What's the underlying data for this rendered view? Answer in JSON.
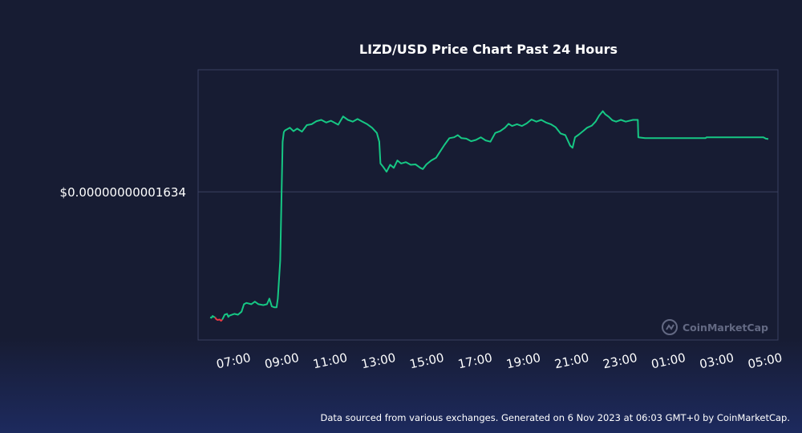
{
  "chart_data": {
    "type": "line",
    "title": "LIZD/USD Price Chart Past 24 Hours",
    "xlabel": "",
    "ylabel": "",
    "x_ticks": [
      "07:00",
      "09:00",
      "11:00",
      "13:00",
      "15:00",
      "17:00",
      "19:00",
      "21:00",
      "23:00",
      "01:00",
      "03:00",
      "05:00"
    ],
    "y_ticks": [
      "$0.00000000001634"
    ],
    "y_tick_value": 1.634e-11,
    "x_range_hours": [
      5.5,
      29.5
    ],
    "y_range": [
      1.6e-11,
      1.662e-11
    ],
    "series": [
      {
        "color_up": "#16c784",
        "color_down": "#ea3943",
        "points": [
          [
            6.0,
            1.6052e-11
          ],
          [
            6.05,
            1.6051e-11
          ],
          [
            6.1,
            1.6055e-11
          ],
          [
            6.15,
            1.6053e-11
          ],
          [
            6.2,
            1.6052e-11
          ],
          [
            6.25,
            1.6048e-11
          ],
          [
            6.3,
            1.6046e-11
          ],
          [
            6.4,
            1.6047e-11
          ],
          [
            6.45,
            1.6044e-11
          ],
          [
            6.5,
            1.6047e-11
          ],
          [
            6.55,
            1.6052e-11
          ],
          [
            6.6,
            1.6058e-11
          ],
          [
            6.7,
            1.606e-11
          ],
          [
            6.75,
            1.6053e-11
          ],
          [
            6.8,
            1.6056e-11
          ],
          [
            7.0,
            1.606e-11
          ],
          [
            7.15,
            1.6058e-11
          ],
          [
            7.3,
            1.6065e-11
          ],
          [
            7.4,
            1.6082e-11
          ],
          [
            7.5,
            1.6085e-11
          ],
          [
            7.7,
            1.6082e-11
          ],
          [
            7.85,
            1.6088e-11
          ],
          [
            8.0,
            1.6082e-11
          ],
          [
            8.2,
            1.608e-11
          ],
          [
            8.35,
            1.6082e-11
          ],
          [
            8.45,
            1.6095e-11
          ],
          [
            8.55,
            1.6077e-11
          ],
          [
            8.65,
            1.6075e-11
          ],
          [
            8.75,
            1.6075e-11
          ],
          [
            8.8,
            1.6095e-11
          ],
          [
            8.9,
            1.6182e-11
          ],
          [
            9.0,
            1.6455e-11
          ],
          [
            9.05,
            1.6477e-11
          ],
          [
            9.1,
            1.6481e-11
          ],
          [
            9.3,
            1.6487e-11
          ],
          [
            9.45,
            1.6479e-11
          ],
          [
            9.6,
            1.6485e-11
          ],
          [
            9.8,
            1.6478e-11
          ],
          [
            10.0,
            1.6493e-11
          ],
          [
            10.2,
            1.6495e-11
          ],
          [
            10.4,
            1.6502e-11
          ],
          [
            10.6,
            1.6505e-11
          ],
          [
            10.8,
            1.6499e-11
          ],
          [
            11.0,
            1.6503e-11
          ],
          [
            11.3,
            1.6494e-11
          ],
          [
            11.5,
            1.6513e-11
          ],
          [
            11.7,
            1.6505e-11
          ],
          [
            11.9,
            1.6501e-11
          ],
          [
            12.1,
            1.6507e-11
          ],
          [
            12.3,
            1.6501e-11
          ],
          [
            12.5,
            1.6495e-11
          ],
          [
            12.7,
            1.6487e-11
          ],
          [
            12.9,
            1.6475e-11
          ],
          [
            13.0,
            1.6455e-11
          ],
          [
            13.05,
            1.6405e-11
          ],
          [
            13.15,
            1.6398e-11
          ],
          [
            13.3,
            1.6386e-11
          ],
          [
            13.45,
            1.6402e-11
          ],
          [
            13.6,
            1.6395e-11
          ],
          [
            13.75,
            1.6412e-11
          ],
          [
            13.9,
            1.6405e-11
          ],
          [
            14.1,
            1.6408e-11
          ],
          [
            14.3,
            1.6402e-11
          ],
          [
            14.5,
            1.6403e-11
          ],
          [
            14.7,
            1.6395e-11
          ],
          [
            14.8,
            1.6392e-11
          ],
          [
            14.95,
            1.6403e-11
          ],
          [
            15.15,
            1.6412e-11
          ],
          [
            15.35,
            1.6418e-11
          ],
          [
            15.5,
            1.6431e-11
          ],
          [
            15.7,
            1.6448e-11
          ],
          [
            15.9,
            1.6463e-11
          ],
          [
            16.1,
            1.6465e-11
          ],
          [
            16.25,
            1.647e-11
          ],
          [
            16.4,
            1.6463e-11
          ],
          [
            16.6,
            1.6462e-11
          ],
          [
            16.8,
            1.6456e-11
          ],
          [
            17.0,
            1.6459e-11
          ],
          [
            17.2,
            1.6465e-11
          ],
          [
            17.4,
            1.6458e-11
          ],
          [
            17.6,
            1.6455e-11
          ],
          [
            17.8,
            1.6475e-11
          ],
          [
            18.0,
            1.6479e-11
          ],
          [
            18.2,
            1.6487e-11
          ],
          [
            18.35,
            1.6496e-11
          ],
          [
            18.5,
            1.6491e-11
          ],
          [
            18.7,
            1.6495e-11
          ],
          [
            18.9,
            1.6491e-11
          ],
          [
            19.1,
            1.6497e-11
          ],
          [
            19.3,
            1.6506e-11
          ],
          [
            19.5,
            1.6501e-11
          ],
          [
            19.7,
            1.6505e-11
          ],
          [
            19.9,
            1.6499e-11
          ],
          [
            20.1,
            1.6495e-11
          ],
          [
            20.3,
            1.6488e-11
          ],
          [
            20.5,
            1.6474e-11
          ],
          [
            20.7,
            1.647e-11
          ],
          [
            20.9,
            1.6446e-11
          ],
          [
            21.0,
            1.6441e-11
          ],
          [
            21.1,
            1.6465e-11
          ],
          [
            21.25,
            1.6471e-11
          ],
          [
            21.45,
            1.648e-11
          ],
          [
            21.6,
            1.6487e-11
          ],
          [
            21.8,
            1.6492e-11
          ],
          [
            21.95,
            1.6501e-11
          ],
          [
            22.1,
            1.6515e-11
          ],
          [
            22.25,
            1.6525e-11
          ],
          [
            22.35,
            1.6518e-11
          ],
          [
            22.5,
            1.6512e-11
          ],
          [
            22.65,
            1.6504e-11
          ],
          [
            22.8,
            1.6501e-11
          ],
          [
            23.0,
            1.6505e-11
          ],
          [
            23.2,
            1.6501e-11
          ],
          [
            23.5,
            1.6505e-11
          ],
          [
            23.7,
            1.6505e-11
          ],
          [
            23.72,
            1.6465e-11
          ],
          [
            24.0,
            1.6463e-11
          ],
          [
            25.0,
            1.6463e-11
          ],
          [
            26.0,
            1.6463e-11
          ],
          [
            26.5,
            1.6463e-11
          ],
          [
            26.55,
            1.6465e-11
          ],
          [
            27.5,
            1.6465e-11
          ],
          [
            28.5,
            1.6465e-11
          ],
          [
            28.9,
            1.6465e-11
          ],
          [
            29.0,
            1.6462e-11
          ],
          [
            29.1,
            1.6461e-11
          ]
        ]
      }
    ],
    "down_segment_hours": [
      6.2,
      6.5
    ],
    "grid": "horizontal line at y tick"
  },
  "footer_text": "Data sourced from various exchanges. Generated on 6 Nov 2023 at 06:03 GMT+0 by CoinMarketCap.",
  "watermark_text": "CoinMarketCap",
  "colors": {
    "background": "#171c33",
    "plot_border": "#3a4060",
    "gridline": "#3a4060",
    "text": "#ffffff",
    "watermark": "#6c728c"
  }
}
